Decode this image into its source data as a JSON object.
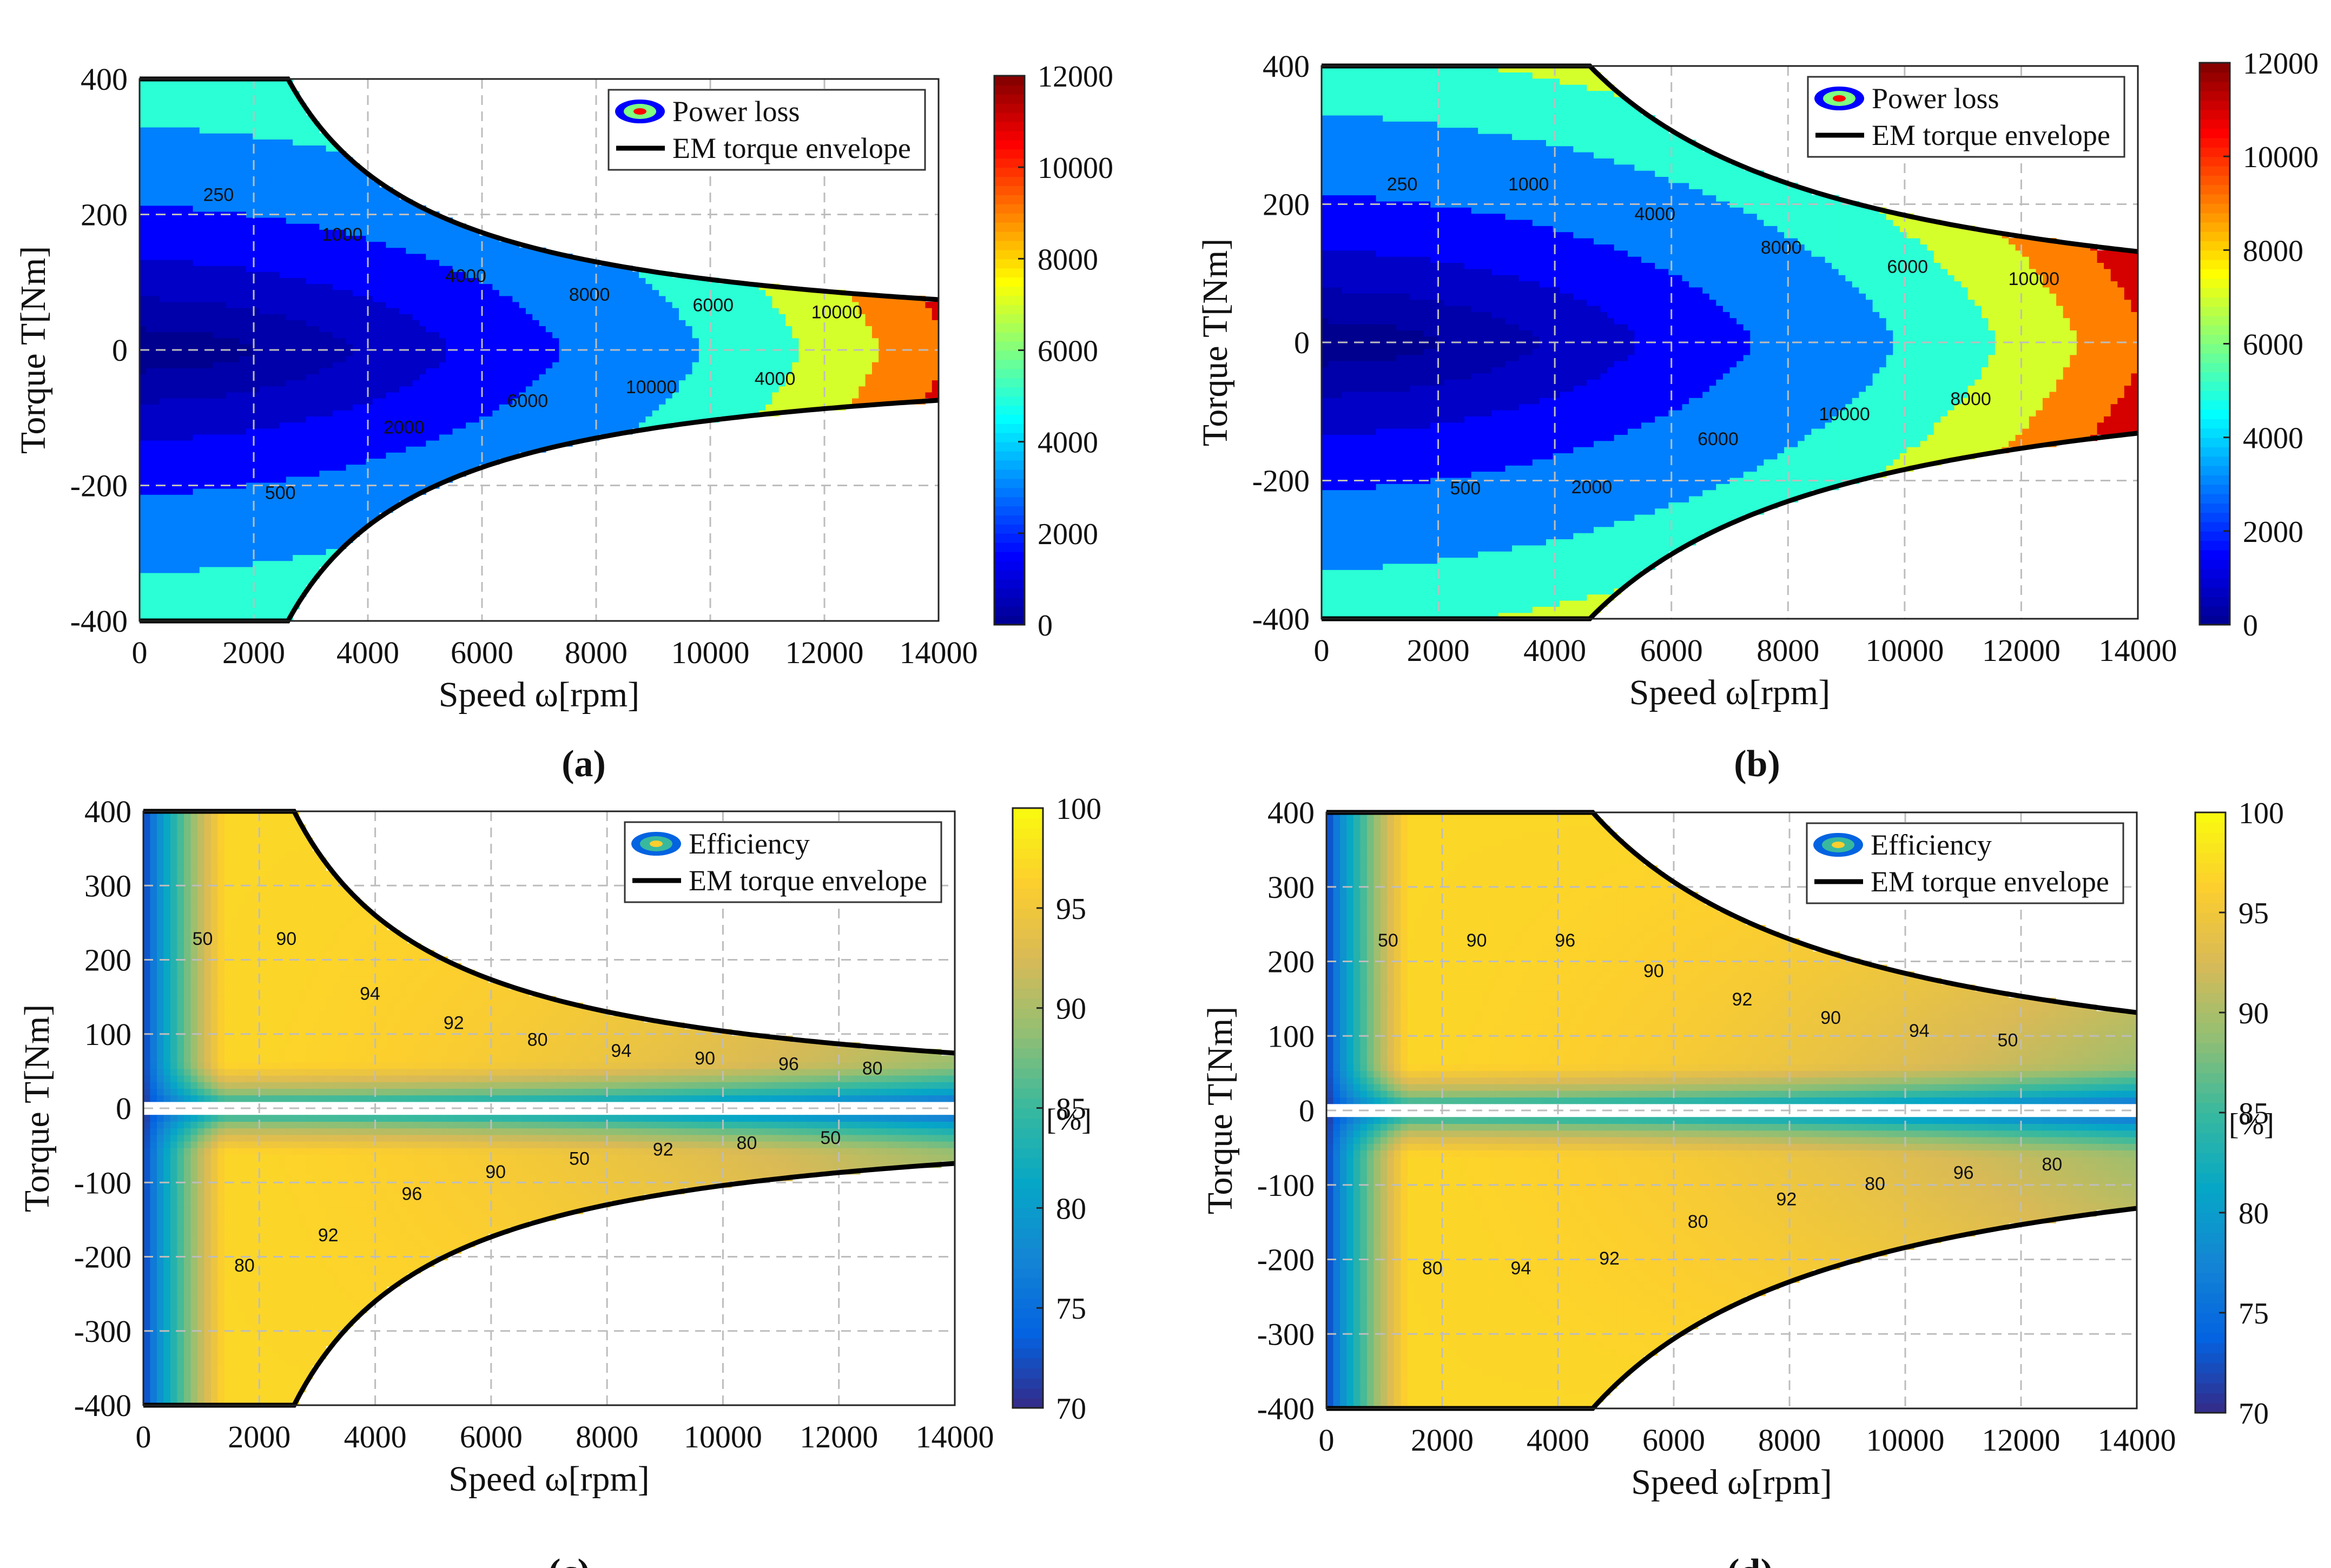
{
  "colors": {
    "jet": [
      "#00008f",
      "#0000ff",
      "#0080ff",
      "#00ffff",
      "#80ff80",
      "#ffff00",
      "#ff8000",
      "#ff0000",
      "#800000"
    ],
    "parula": [
      "#352a87",
      "#0363e1",
      "#1485d4",
      "#06a7c6",
      "#38b99e",
      "#92bf73",
      "#d9ba56",
      "#fcce2e",
      "#f9fb0e"
    ],
    "grid": "#bdbdbd",
    "envelope": "#000000"
  },
  "chart_data": [
    {
      "id": "a",
      "panel_label": "(a)",
      "type": "contour",
      "xlabel": "Speed ω[rpm]",
      "ylabel": "Torque T[Nm]",
      "xlim": [
        0,
        14000
      ],
      "ylim": [
        -400,
        400
      ],
      "xticks": [
        "0",
        "2000",
        "4000",
        "6000",
        "8000",
        "10000",
        "12000",
        "14000"
      ],
      "yticks": [
        "-400",
        "-200",
        "0",
        "200",
        "400"
      ],
      "grid": true,
      "colormap": "jet",
      "clim": [
        0,
        12000
      ],
      "colorbar_ticks": [
        "0",
        "2000",
        "4000",
        "6000",
        "8000",
        "10000",
        "12000"
      ],
      "colorbar_unit": "",
      "legend": {
        "position": "top-right",
        "entries": [
          "Power loss",
          "EM torque envelope"
        ]
      },
      "envelope": {
        "base_torque": 400,
        "base_speed": 2600,
        "max_speed": 14000
      },
      "contour_levels": [
        250,
        500,
        1000,
        2000,
        4000,
        6000,
        8000,
        10000,
        12000
      ],
      "contour_labels": [
        "250",
        "500",
        "1000",
        "2000",
        "4000",
        "6000",
        "8000",
        "10000",
        "6000",
        "4000",
        "10000"
      ]
    },
    {
      "id": "b",
      "panel_label": "(b)",
      "type": "contour",
      "xlabel": "Speed ω[rpm]",
      "ylabel": "Torque T[Nm]",
      "xlim": [
        0,
        14000
      ],
      "ylim": [
        -400,
        400
      ],
      "xticks": [
        "0",
        "2000",
        "4000",
        "6000",
        "8000",
        "10000",
        "12000",
        "14000"
      ],
      "yticks": [
        "-400",
        "-200",
        "0",
        "200",
        "400"
      ],
      "grid": true,
      "colormap": "jet",
      "clim": [
        0,
        12000
      ],
      "colorbar_ticks": [
        "0",
        "2000",
        "4000",
        "6000",
        "8000",
        "10000",
        "12000"
      ],
      "colorbar_unit": "",
      "legend": {
        "position": "top-right",
        "entries": [
          "Power loss",
          "EM torque envelope"
        ]
      },
      "envelope": {
        "base_torque": 400,
        "base_speed": 4600,
        "max_speed": 14000
      },
      "contour_levels": [
        250,
        500,
        1000,
        2000,
        4000,
        6000,
        8000,
        10000,
        12000
      ],
      "contour_labels": [
        "250",
        "500",
        "1000",
        "2000",
        "4000",
        "6000",
        "8000",
        "10000",
        "6000",
        "8000",
        "10000"
      ]
    },
    {
      "id": "c",
      "panel_label": "(c)",
      "type": "contour",
      "xlabel": "Speed ω[rpm]",
      "ylabel": "Torque T[Nm]",
      "xlim": [
        0,
        14000
      ],
      "ylim": [
        -400,
        400
      ],
      "xticks": [
        "0",
        "2000",
        "4000",
        "6000",
        "8000",
        "10000",
        "12000",
        "14000"
      ],
      "yticks": [
        "-400",
        "-300",
        "-200",
        "-100",
        "0",
        "100",
        "200",
        "300",
        "400"
      ],
      "grid": true,
      "colormap": "parula",
      "clim": [
        70,
        100
      ],
      "colorbar_ticks": [
        "70",
        "75",
        "80",
        "85",
        "90",
        "95",
        "100"
      ],
      "colorbar_unit": "[%]",
      "legend": {
        "position": "top-right",
        "entries": [
          "Efficiency",
          "EM torque envelope"
        ]
      },
      "envelope": {
        "base_torque": 400,
        "base_speed": 2600,
        "max_speed": 14000
      },
      "contour_levels": [
        50,
        80,
        90,
        92,
        94,
        96
      ],
      "contour_labels": [
        "50",
        "80",
        "90",
        "92",
        "94",
        "96",
        "92",
        "90",
        "80",
        "50",
        "94",
        "92",
        "90",
        "80",
        "96",
        "50",
        "80"
      ]
    },
    {
      "id": "d",
      "panel_label": "(d)",
      "type": "contour",
      "xlabel": "Speed ω[rpm]",
      "ylabel": "Torque T[Nm]",
      "xlim": [
        0,
        14000
      ],
      "ylim": [
        -400,
        400
      ],
      "xticks": [
        "0",
        "2000",
        "4000",
        "6000",
        "8000",
        "10000",
        "12000",
        "14000"
      ],
      "yticks": [
        "-400",
        "-300",
        "-200",
        "-100",
        "0",
        "100",
        "200",
        "300",
        "400"
      ],
      "grid": true,
      "colormap": "parula",
      "clim": [
        70,
        100
      ],
      "colorbar_ticks": [
        "70",
        "75",
        "80",
        "85",
        "90",
        "95",
        "100"
      ],
      "colorbar_unit": "[%]",
      "legend": {
        "position": "top-right",
        "entries": [
          "Efficiency",
          "EM torque envelope"
        ]
      },
      "envelope": {
        "base_torque": 400,
        "base_speed": 4600,
        "max_speed": 14000
      },
      "contour_levels": [
        50,
        80,
        90,
        92,
        94,
        96
      ],
      "contour_labels": [
        "50",
        "80",
        "90",
        "94",
        "96",
        "92",
        "90",
        "80",
        "92",
        "92",
        "90",
        "80",
        "94",
        "96",
        "50",
        "80"
      ]
    }
  ]
}
